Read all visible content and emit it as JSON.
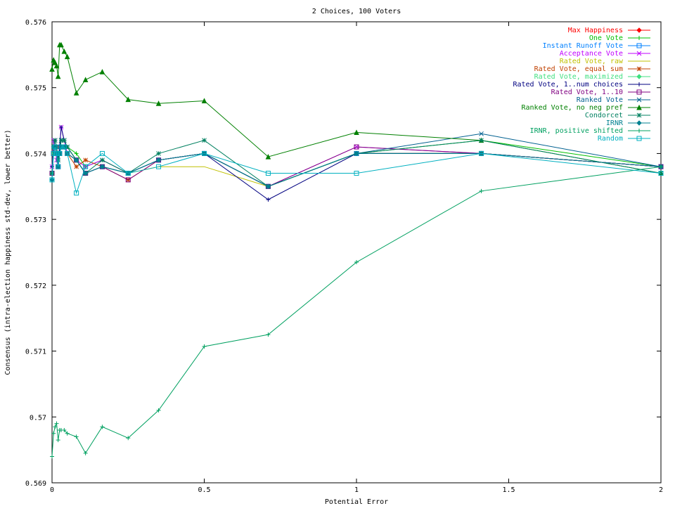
{
  "chart_data": {
    "type": "line",
    "title": "2 Choices, 100 Voters",
    "xlabel": "Potential Error",
    "ylabel": "Consensus (intra-election happiness std-dev, lower better)",
    "xlim": [
      0,
      2
    ],
    "ylim": [
      0.569,
      0.576
    ],
    "xticks": [
      0,
      0.5,
      1,
      1.5,
      2
    ],
    "xtick_labels": [
      "0",
      "0.5",
      "1",
      "1.5",
      "2"
    ],
    "yticks": [
      0.569,
      0.57,
      0.571,
      0.572,
      0.573,
      0.574,
      0.575,
      0.576
    ],
    "ytick_labels": [
      "0.569",
      "0.57",
      "0.571",
      "0.572",
      "0.573",
      "0.574",
      "0.575",
      "0.576"
    ],
    "grid": false,
    "legend_position": "top-right",
    "x": [
      0,
      0.005,
      0.01,
      0.015,
      0.02,
      0.025,
      0.03,
      0.04,
      0.05,
      0.08,
      0.11,
      0.165,
      0.25,
      0.35,
      0.5,
      0.71,
      1.0,
      1.41,
      2.0
    ],
    "series": [
      {
        "name": "Max Happiness",
        "color": "#ff0000",
        "marker": "diamond",
        "values": [
          0.5737,
          0.574,
          0.5741,
          0.5741,
          0.5738,
          0.574,
          0.5741,
          0.5741,
          0.574,
          0.5739,
          0.5737,
          0.5738,
          0.5737,
          0.5739,
          0.574,
          0.5735,
          0.574,
          0.574,
          0.5738
        ]
      },
      {
        "name": "One Vote",
        "color": "#00c000",
        "marker": "plus",
        "values": [
          0.5738,
          0.5741,
          0.5742,
          0.5741,
          0.5739,
          0.5741,
          0.5742,
          0.5742,
          0.5741,
          0.574,
          0.5738,
          0.5739,
          0.5737,
          0.5739,
          0.574,
          0.5735,
          0.574,
          0.5742,
          0.5738
        ]
      },
      {
        "name": "Instant Runoff Vote",
        "color": "#0080ff",
        "marker": "square",
        "values": [
          0.5737,
          0.574,
          0.5741,
          0.574,
          0.5738,
          0.574,
          0.5741,
          0.5741,
          0.574,
          0.5739,
          0.5737,
          0.5738,
          0.5737,
          0.5739,
          0.574,
          0.5735,
          0.574,
          0.574,
          0.5738
        ]
      },
      {
        "name": "Acceptance Vote",
        "color": "#c000ff",
        "marker": "x",
        "values": [
          0.5738,
          0.5742,
          0.5741,
          0.5739,
          0.5738,
          0.5741,
          0.5744,
          0.5742,
          0.574,
          0.5739,
          0.5738,
          0.5739,
          0.5737,
          0.5739,
          0.574,
          0.5735,
          0.5741,
          0.574,
          0.5738
        ]
      },
      {
        "name": "Rated Vote, raw",
        "color": "#c0c000",
        "marker": "none",
        "values": [
          0.5737,
          0.574,
          0.5741,
          0.574,
          0.5738,
          0.574,
          0.5741,
          0.5741,
          0.574,
          0.5739,
          0.5737,
          0.5738,
          0.5737,
          0.5738,
          0.5738,
          0.5735,
          0.574,
          0.574,
          0.5738
        ]
      },
      {
        "name": "Rated Vote, equal sum",
        "color": "#c04000",
        "marker": "star",
        "values": [
          0.5737,
          0.574,
          0.5741,
          0.574,
          0.5738,
          0.574,
          0.5741,
          0.5741,
          0.574,
          0.5738,
          0.5739,
          0.5738,
          0.5736,
          0.5739,
          0.574,
          0.5735,
          0.574,
          0.574,
          0.5738
        ]
      },
      {
        "name": "Rated Vote, maximized",
        "color": "#40e080",
        "marker": "diamond",
        "values": [
          0.5737,
          0.574,
          0.5741,
          0.574,
          0.5738,
          0.574,
          0.5741,
          0.5741,
          0.574,
          0.5739,
          0.5737,
          0.5738,
          0.5737,
          0.5739,
          0.574,
          0.5735,
          0.574,
          0.574,
          0.5738
        ]
      },
      {
        "name": "Rated Vote, 1..num choices",
        "color": "#000080",
        "marker": "plus",
        "values": [
          0.5738,
          0.5741,
          0.5742,
          0.5741,
          0.5739,
          0.5741,
          0.5744,
          0.5742,
          0.5741,
          0.5739,
          0.5737,
          0.5738,
          0.5737,
          0.5739,
          0.574,
          0.5733,
          0.574,
          0.574,
          0.5738
        ]
      },
      {
        "name": "Rated Vote, 1..10",
        "color": "#800080",
        "marker": "square",
        "values": [
          0.5737,
          0.574,
          0.5741,
          0.574,
          0.5738,
          0.574,
          0.5741,
          0.5741,
          0.574,
          0.5739,
          0.5737,
          0.5738,
          0.5736,
          0.5739,
          0.574,
          0.5735,
          0.5741,
          0.574,
          0.5738
        ]
      },
      {
        "name": "Ranked Vote",
        "color": "#006090",
        "marker": "x",
        "values": [
          0.5737,
          0.5741,
          0.5742,
          0.5741,
          0.5739,
          0.574,
          0.5742,
          0.5742,
          0.5741,
          0.5739,
          0.5737,
          0.5738,
          0.5737,
          0.5739,
          0.574,
          0.5735,
          0.574,
          0.5743,
          0.5738
        ]
      },
      {
        "name": "Ranked Vote, no neg pref",
        "color": "#008000",
        "marker": "triangle",
        "values": [
          0.57528,
          0.57542,
          0.57538,
          0.57533,
          0.57517,
          0.57565,
          0.57565,
          0.57555,
          0.57547,
          0.57492,
          0.57512,
          0.57524,
          0.57482,
          0.57476,
          0.5748,
          0.57395,
          0.57432,
          0.5742,
          0.5737
        ]
      },
      {
        "name": "Condorcet",
        "color": "#008060",
        "marker": "star",
        "values": [
          0.5737,
          0.5741,
          0.5742,
          0.5741,
          0.5739,
          0.574,
          0.5742,
          0.5742,
          0.5741,
          0.5739,
          0.5737,
          0.5739,
          0.5737,
          0.574,
          0.5742,
          0.5735,
          0.574,
          0.5742,
          0.5737
        ]
      },
      {
        "name": "IRNR",
        "color": "#008090",
        "marker": "diamond",
        "values": [
          0.5736,
          0.5741,
          0.5741,
          0.574,
          0.5738,
          0.574,
          0.5741,
          0.5741,
          0.574,
          0.5739,
          0.5737,
          0.5738,
          0.5737,
          0.5739,
          0.574,
          0.5735,
          0.574,
          0.574,
          0.5738
        ]
      },
      {
        "name": "IRNR, positive shifted",
        "color": "#00a060",
        "marker": "plus",
        "values": [
          0.5694,
          0.56975,
          0.56985,
          0.5699,
          0.56965,
          0.5698,
          0.5698,
          0.5698,
          0.56975,
          0.5697,
          0.56945,
          0.56985,
          0.56968,
          0.5701,
          0.57107,
          0.57125,
          0.57235,
          0.57343,
          0.5738
        ]
      },
      {
        "name": "Random",
        "color": "#00b0c0",
        "marker": "square",
        "values": [
          0.5736,
          0.574,
          0.5741,
          0.574,
          0.5738,
          0.574,
          0.5741,
          0.5741,
          0.574,
          0.5734,
          0.5738,
          0.574,
          0.5737,
          0.5738,
          0.574,
          0.5737,
          0.5737,
          0.574,
          0.5737
        ]
      }
    ]
  }
}
